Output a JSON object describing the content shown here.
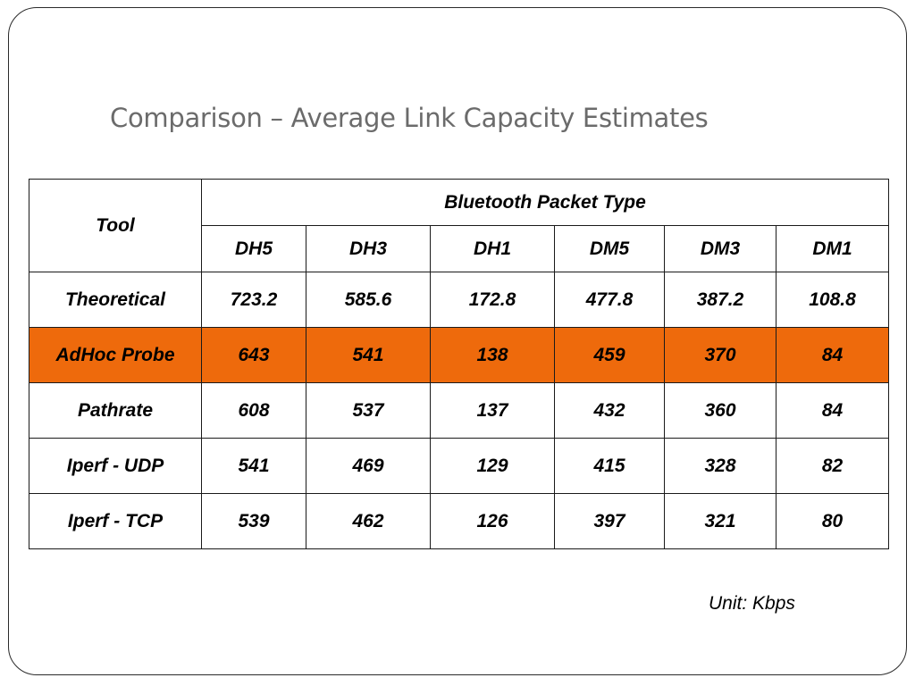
{
  "slide": {
    "title": "Comparison – Average Link Capacity Estimates",
    "unit_note": "Unit: Kbps"
  },
  "table": {
    "tool_header": "Tool",
    "group_header": "Bluetooth Packet Type",
    "columns": [
      "DH5",
      "DH3",
      "DH1",
      "DM5",
      "DM3",
      "DM1"
    ],
    "rows": [
      {
        "tool": "Theoretical",
        "values": [
          "723.2",
          "585.6",
          "172.8",
          "477.8",
          "387.2",
          "108.8"
        ]
      },
      {
        "tool": "AdHoc Probe",
        "values": [
          "643",
          "541",
          "138",
          "459",
          "370",
          "84"
        ]
      },
      {
        "tool": "Pathrate",
        "values": [
          "608",
          "537",
          "137",
          "432",
          "360",
          "84"
        ]
      },
      {
        "tool": "Iperf - UDP",
        "values": [
          "541",
          "469",
          "129",
          "415",
          "328",
          "82"
        ]
      },
      {
        "tool": "Iperf - TCP",
        "values": [
          "539",
          "462",
          "126",
          "397",
          "321",
          "80"
        ]
      }
    ],
    "highlight_row_color": "#ee6a0c"
  }
}
